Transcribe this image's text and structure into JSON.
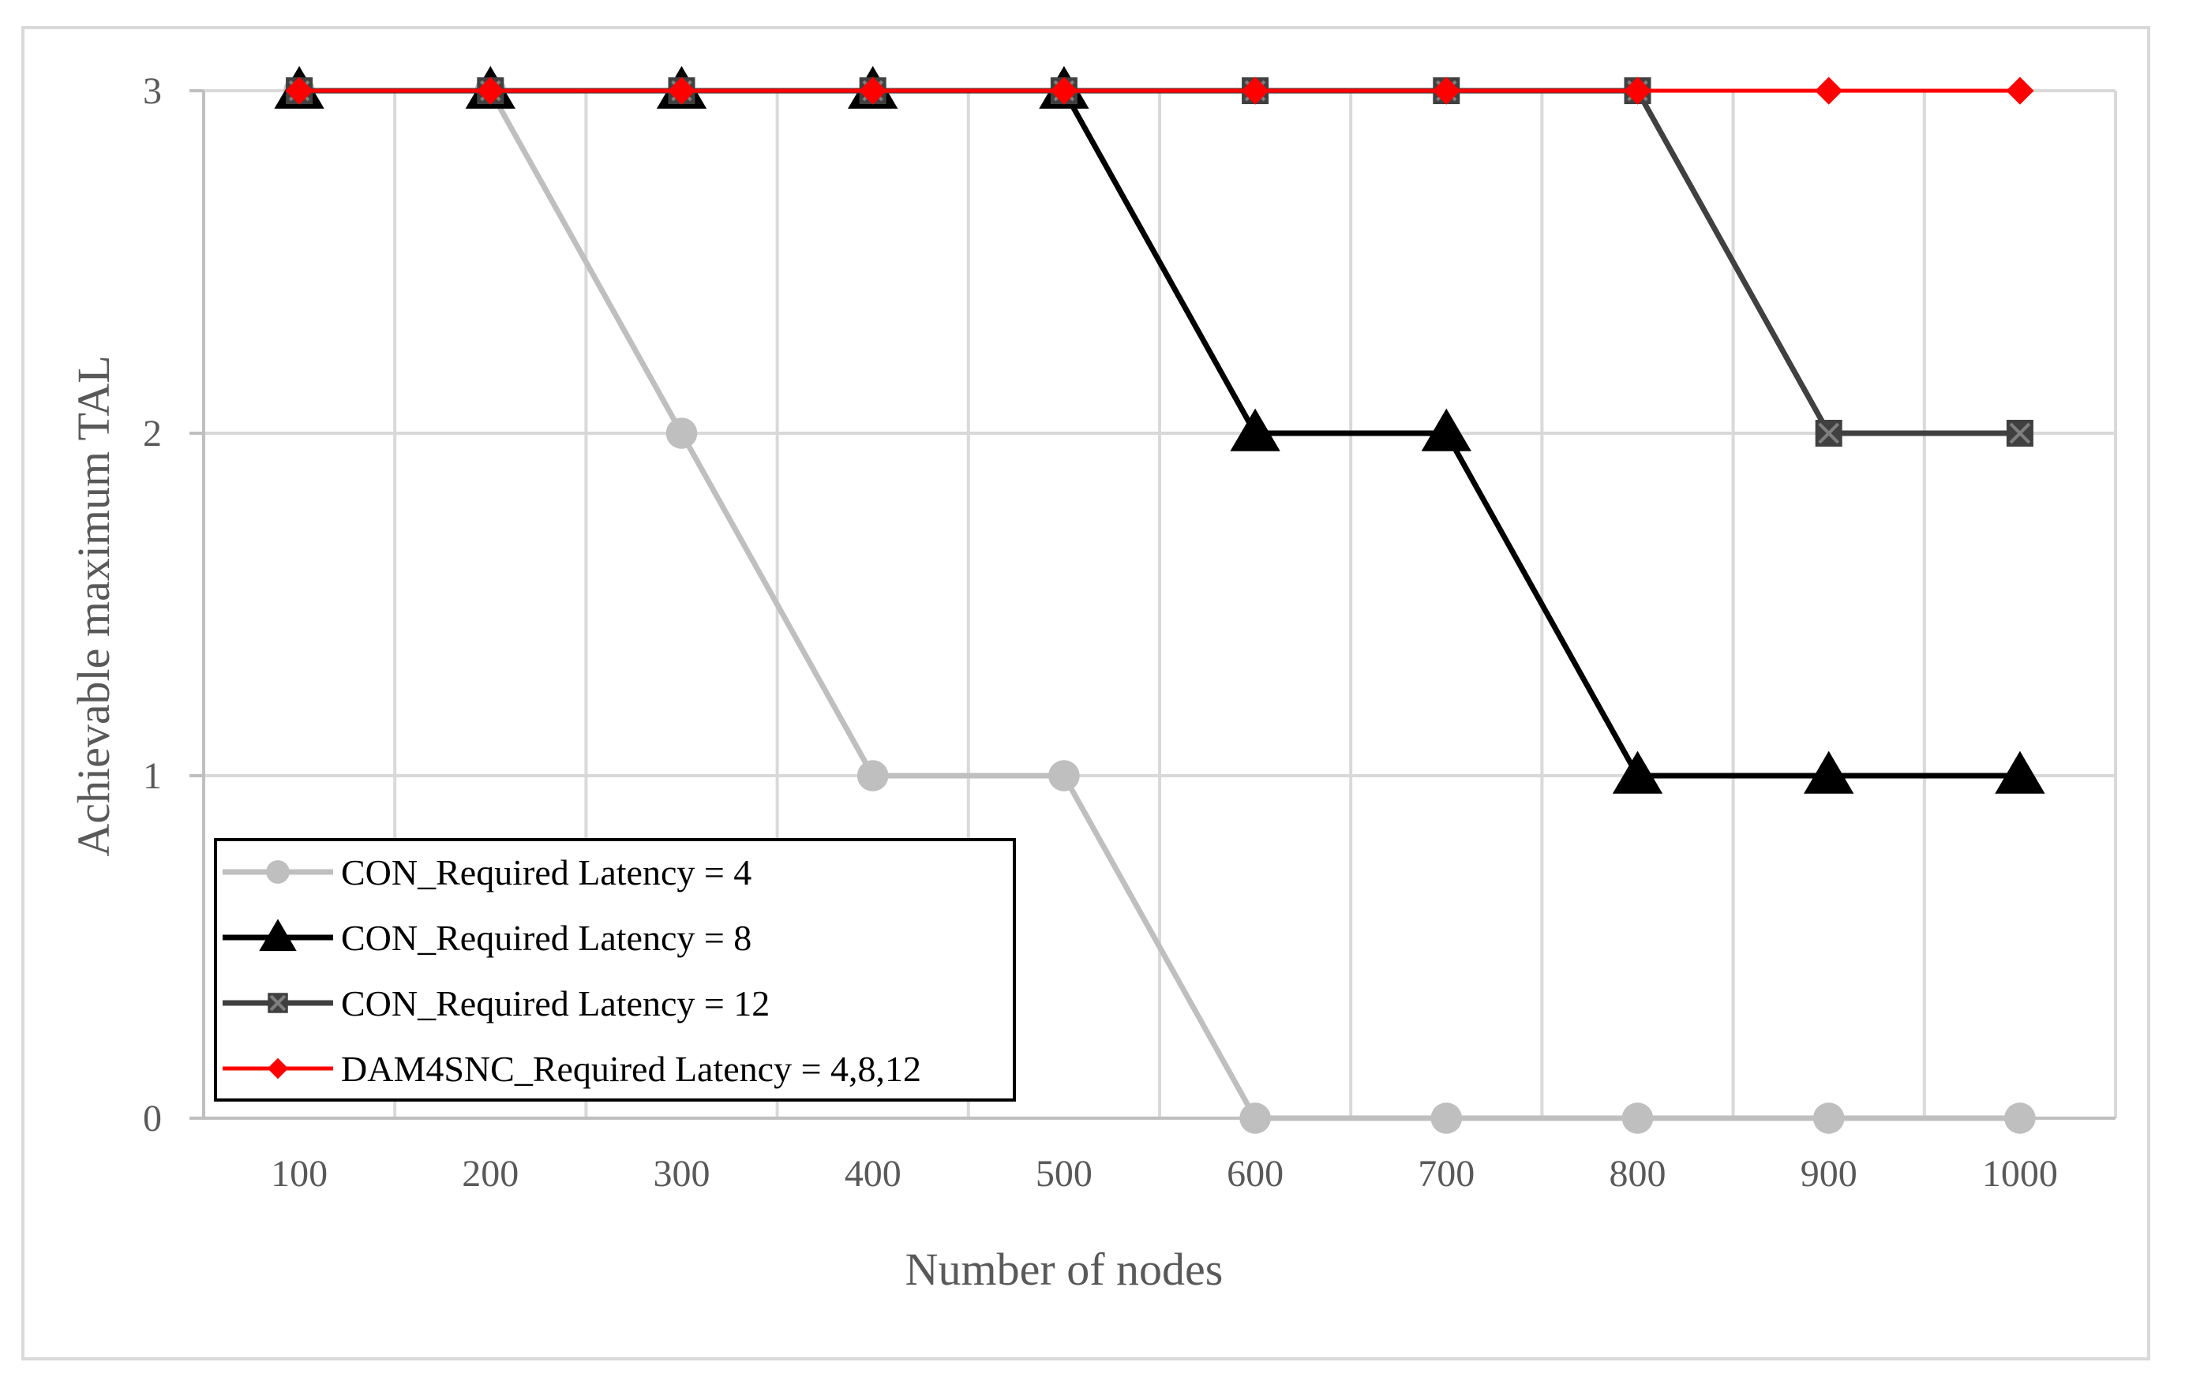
{
  "chart_data": {
    "type": "line",
    "title": "",
    "xlabel": "Number of nodes",
    "ylabel": "Achievable maximum  TAL",
    "x": [
      100,
      200,
      300,
      400,
      500,
      600,
      700,
      800,
      900,
      1000
    ],
    "x_tick_labels": [
      "100",
      "200",
      "300",
      "400",
      "500",
      "600",
      "700",
      "800",
      "900",
      "1000"
    ],
    "y_ticks": [
      0,
      1,
      2,
      3
    ],
    "y_tick_labels": [
      "0",
      "1",
      "2",
      "3"
    ],
    "ylim": [
      0,
      3
    ],
    "grid": true,
    "legend_position": "bottom-left",
    "series": [
      {
        "name": "CON_Required Latency = 4",
        "marker": "circle",
        "color": "#bfbfbf",
        "values": [
          3,
          3,
          2,
          1,
          1,
          0,
          0,
          0,
          0,
          0
        ]
      },
      {
        "name": "CON_Required Latency = 8",
        "marker": "triangle",
        "color": "#000000",
        "values": [
          3,
          3,
          3,
          3,
          3,
          2,
          2,
          1,
          1,
          1
        ]
      },
      {
        "name": "CON_Required Latency = 12",
        "marker": "square",
        "color": "#404040",
        "values": [
          3,
          3,
          3,
          3,
          3,
          3,
          3,
          3,
          2,
          2
        ]
      },
      {
        "name": "DAM4SNC_Required Latency = 4,8,12",
        "marker": "diamond",
        "color": "#ff0000",
        "values": [
          3,
          3,
          3,
          3,
          3,
          3,
          3,
          3,
          3,
          3
        ]
      }
    ]
  }
}
